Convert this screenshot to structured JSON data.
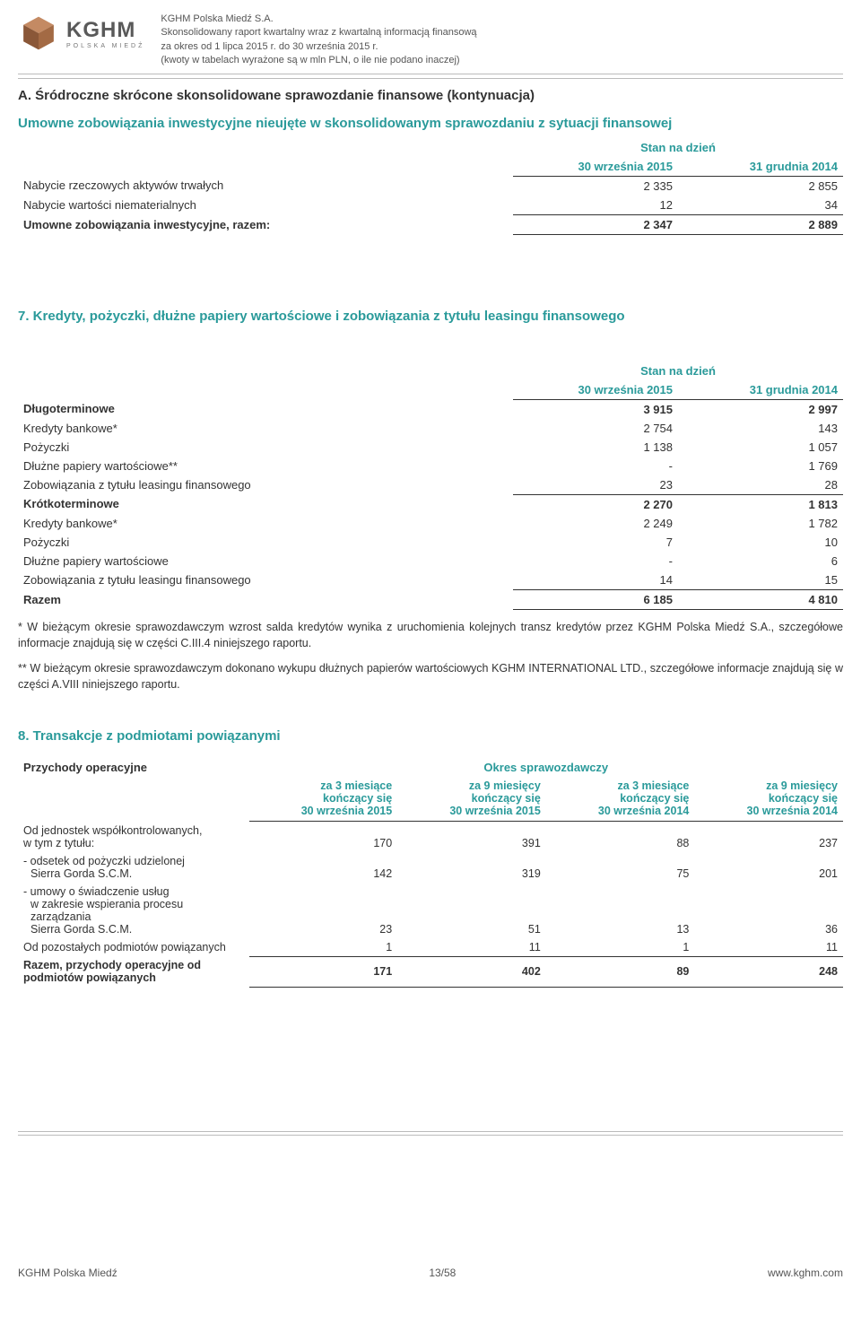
{
  "header": {
    "company": "KGHM Polska Miedź S.A.",
    "line2": "Skonsolidowany raport kwartalny wraz z kwartalną informacją finansową",
    "line3": "za okres od 1 lipca 2015 r. do 30 września 2015 r.",
    "line4": "(kwoty w tabelach wyrażone są w mln PLN, o ile nie podano inaczej)",
    "brand": "KGHM",
    "brand_sub": "POLSKA MIEDŹ"
  },
  "sectionA": {
    "title": "A. Śródroczne skrócone skonsolidowane sprawozdanie finansowe (kontynuacja)",
    "sub": "Umowne zobowiązania inwestycyjne nieujęte w skonsolidowanym sprawozdaniu z sytuacji finansowej",
    "stan": "Stan na dzień",
    "col1": "30 września 2015",
    "col2": "31 grudnia 2014",
    "rows": [
      {
        "label": "Nabycie rzeczowych aktywów trwałych",
        "v1": "2 335",
        "v2": "2 855"
      },
      {
        "label": "Nabycie wartości niematerialnych",
        "v1": "12",
        "v2": "34"
      }
    ],
    "total": {
      "label": "Umowne zobowiązania inwestycyjne, razem:",
      "v1": "2 347",
      "v2": "2 889"
    }
  },
  "section7": {
    "title": "7.    Kredyty, pożyczki, dłużne papiery wartościowe i zobowiązania z tytułu leasingu finansowego",
    "stan": "Stan na dzień",
    "col1": "30 września 2015",
    "col2": "31 grudnia 2014",
    "rows": [
      {
        "label": "Długoterminowe",
        "v1": "3 915",
        "v2": "2 997",
        "bold": true
      },
      {
        "label": "Kredyty bankowe*",
        "v1": "2 754",
        "v2": "143"
      },
      {
        "label": "Pożyczki",
        "v1": "1 138",
        "v2": "1 057"
      },
      {
        "label": "Dłużne papiery wartościowe**",
        "v1": "-",
        "v2": "1 769"
      },
      {
        "label": "Zobowiązania z tytułu leasingu finansowego",
        "v1": "23",
        "v2": "28"
      },
      {
        "label": "Krótkoterminowe",
        "v1": "2 270",
        "v2": "1 813",
        "bold": true
      },
      {
        "label": "Kredyty bankowe*",
        "v1": "2 249",
        "v2": "1 782"
      },
      {
        "label": "Pożyczki",
        "v1": "7",
        "v2": "10"
      },
      {
        "label": "Dłużne papiery wartościowe",
        "v1": "-",
        "v2": "6"
      },
      {
        "label": "Zobowiązania z tytułu leasingu finansowego",
        "v1": "14",
        "v2": "15"
      }
    ],
    "total": {
      "label": "Razem",
      "v1": "6 185",
      "v2": "4 810"
    }
  },
  "notes": {
    "n1": "* W bieżącym okresie sprawozdawczym wzrost salda kredytów wynika z uruchomienia kolejnych transz kredytów przez KGHM Polska Miedź S.A., szczegółowe informacje znajdują się w części C.III.4 niniejszego raportu.",
    "n2": "** W bieżącym okresie sprawozdawczym dokonano wykupu dłużnych papierów wartościowych KGHM INTERNATIONAL LTD., szczegółowe informacje znajdują się w części A.VIII niniejszego raportu."
  },
  "section8": {
    "title": "8.    Transakcje z podmiotami powiązanymi",
    "left_head": "Przychody operacyjne",
    "right_head": "Okres sprawozdawczy",
    "cols": [
      {
        "l1": "za 3 miesiące",
        "l2": "kończący się",
        "l3": "30 września 2015"
      },
      {
        "l1": "za 9 miesięcy",
        "l2": "kończący się",
        "l3": "30 września 2015"
      },
      {
        "l1": "za 3 miesiące",
        "l2": "kończący się",
        "l3": "30 września 2014"
      },
      {
        "l1": "za 9 miesięcy",
        "l2": "kończący się",
        "l3": "30 września 2014"
      }
    ],
    "rows": [
      {
        "label": "Od jednostek współkontrolowanych,",
        "sub": "w tym z tytułu:",
        "v": [
          "170",
          "391",
          "88",
          "237"
        ]
      },
      {
        "label": "- odsetek od pożyczki udzielonej",
        "sub": "Sierra Gorda S.C.M.",
        "v": [
          "142",
          "319",
          "75",
          "201"
        ],
        "indent": 1
      },
      {
        "label": "- umowy o świadczenie usług",
        "sub": "w zakresie wspierania procesu zarządzania",
        "sub2": "Sierra Gorda S.C.M.",
        "v": [
          "23",
          "51",
          "13",
          "36"
        ],
        "indent": 1
      },
      {
        "label": "Od pozostałych podmiotów powiązanych",
        "v": [
          "1",
          "11",
          "1",
          "11"
        ]
      }
    ],
    "total": {
      "label": "Razem, przychody operacyjne od",
      "sub": "podmiotów powiązanych",
      "v": [
        "171",
        "402",
        "89",
        "248"
      ]
    }
  },
  "footer": {
    "left": "KGHM Polska Miedź",
    "center": "13/58",
    "right": "www.kghm.com"
  },
  "colors": {
    "teal": "#2a9a9a",
    "text": "#333333",
    "rule": "#bbbbbb",
    "copper1": "#b8734a",
    "copper2": "#8a5738"
  }
}
